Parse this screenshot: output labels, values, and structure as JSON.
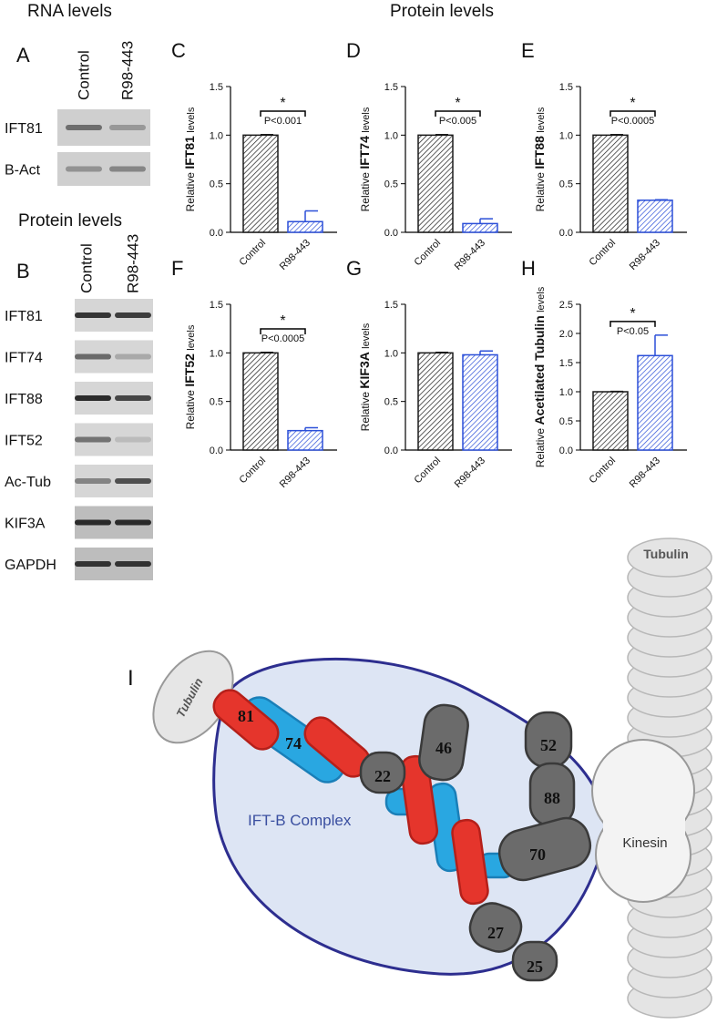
{
  "headings": {
    "rna": "RNA levels",
    "protein_left": "Protein levels",
    "protein_right": "Protein levels"
  },
  "panel_a": {
    "label": "A",
    "lanes": [
      "Control",
      "R98-443"
    ],
    "rows": [
      "IFT81",
      "B-Act"
    ]
  },
  "panel_b": {
    "label": "B",
    "lanes": [
      "Control",
      "R98-443"
    ],
    "rows": [
      "IFT81",
      "IFT74",
      "IFT88",
      "IFT52",
      "Ac-Tub",
      "KIF3A",
      "GAPDH"
    ]
  },
  "chart_data": [
    {
      "type": "bar",
      "panel": "C",
      "ylabel_prefix": "Relative",
      "ylabel_target": "IFT81",
      "ylabel_suffix": "levels",
      "categories": [
        "Control",
        "R98-443"
      ],
      "values": [
        1.0,
        0.11
      ],
      "errors": [
        0.005,
        0.11
      ],
      "colors": [
        "#1a1a1a",
        "#2b4fd8"
      ],
      "ylim": [
        0,
        1.5
      ],
      "yticks": [
        {
          "value": 0,
          "label": "0.0"
        },
        {
          "value": 0.5,
          "label": "0.5"
        },
        {
          "value": 1,
          "label": "1.0"
        },
        {
          "value": 1.5,
          "label": "1.5"
        }
      ],
      "significance": "*",
      "p_value": "P<0.001"
    },
    {
      "type": "bar",
      "panel": "D",
      "ylabel_prefix": "Relative",
      "ylabel_target": "IFT74",
      "ylabel_suffix": "levels",
      "categories": [
        "Control",
        "R98-443"
      ],
      "values": [
        1.0,
        0.09
      ],
      "errors": [
        0.005,
        0.05
      ],
      "colors": [
        "#1a1a1a",
        "#2b4fd8"
      ],
      "ylim": [
        0,
        1.5
      ],
      "yticks": [
        {
          "value": 0,
          "label": "0.0"
        },
        {
          "value": 0.5,
          "label": "0.5"
        },
        {
          "value": 1,
          "label": "1.0"
        },
        {
          "value": 1.5,
          "label": "1.5"
        }
      ],
      "significance": "*",
      "p_value": "P<0.005"
    },
    {
      "type": "bar",
      "panel": "E",
      "ylabel_prefix": "Relative",
      "ylabel_target": "IFT88",
      "ylabel_suffix": "levels",
      "categories": [
        "Control",
        "R98-443"
      ],
      "values": [
        1.0,
        0.33
      ],
      "errors": [
        0.005,
        0.005
      ],
      "colors": [
        "#1a1a1a",
        "#2b4fd8"
      ],
      "ylim": [
        0,
        1.5
      ],
      "yticks": [
        {
          "value": 0,
          "label": "0.0"
        },
        {
          "value": 0.5,
          "label": "0.5"
        },
        {
          "value": 1,
          "label": "1.0"
        },
        {
          "value": 1.5,
          "label": "1.5"
        }
      ],
      "significance": "*",
      "p_value": "P<0.0005"
    },
    {
      "type": "bar",
      "panel": "F",
      "ylabel_prefix": "Relative",
      "ylabel_target": "IFT52",
      "ylabel_suffix": "levels",
      "categories": [
        "Control",
        "R98-443"
      ],
      "values": [
        1.0,
        0.2
      ],
      "errors": [
        0.005,
        0.03
      ],
      "colors": [
        "#1a1a1a",
        "#2b4fd8"
      ],
      "ylim": [
        0,
        1.5
      ],
      "yticks": [
        {
          "value": 0,
          "label": "0.0"
        },
        {
          "value": 0.5,
          "label": "0.5"
        },
        {
          "value": 1,
          "label": "1.0"
        },
        {
          "value": 1.5,
          "label": "1.5"
        }
      ],
      "significance": "*",
      "p_value": "P<0.0005"
    },
    {
      "type": "bar",
      "panel": "G",
      "ylabel_prefix": "Relative",
      "ylabel_target": "KIF3A",
      "ylabel_suffix": "levels",
      "categories": [
        "Control",
        "R98-443"
      ],
      "values": [
        1.0,
        0.98
      ],
      "errors": [
        0.005,
        0.04
      ],
      "colors": [
        "#1a1a1a",
        "#2b4fd8"
      ],
      "ylim": [
        0,
        1.5
      ],
      "yticks": [
        {
          "value": 0,
          "label": "0.0"
        },
        {
          "value": 0.5,
          "label": "0.5"
        },
        {
          "value": 1,
          "label": "1.0"
        },
        {
          "value": 1.5,
          "label": "1.5"
        }
      ]
    },
    {
      "type": "bar",
      "panel": "H",
      "ylabel_prefix": "Relative",
      "ylabel_target": "Acetilated Tubulin",
      "ylabel_suffix": "levels",
      "categories": [
        "Control",
        "R98-443"
      ],
      "values": [
        1.0,
        1.62
      ],
      "errors": [
        0.005,
        0.35
      ],
      "colors": [
        "#1a1a1a",
        "#2b4fd8"
      ],
      "ylim": [
        0,
        2.5
      ],
      "yticks": [
        {
          "value": 0,
          "label": "0.0"
        },
        {
          "value": 0.5,
          "label": "0.5"
        },
        {
          "value": 1,
          "label": "1.0"
        },
        {
          "value": 1.5,
          "label": "1.5"
        },
        {
          "value": 2,
          "label": "2.0"
        },
        {
          "value": 2.5,
          "label": "2.5"
        }
      ],
      "significance": "*",
      "p_value": "P<0.05"
    }
  ],
  "diagram": {
    "label": "I",
    "complex": "IFT-B Complex",
    "tubulin_small": "Tubulin",
    "tubulin_stack": "Tubulin",
    "kinesin": "Kinesin",
    "subunits": [
      "81",
      "74",
      "22",
      "46",
      "52",
      "88",
      "70",
      "27",
      "25"
    ]
  }
}
